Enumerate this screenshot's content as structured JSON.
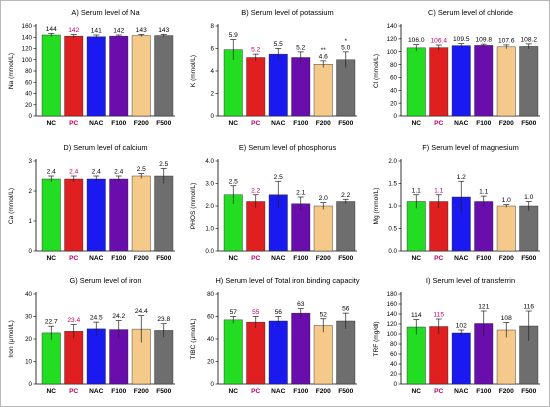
{
  "colors": [
    "#22dd22",
    "#e02020",
    "#1a1af0",
    "#6a0dad",
    "#f5c98a",
    "#6e6e6e"
  ],
  "label_colors": [
    "#000000",
    "#c0006a",
    "#000000",
    "#000000",
    "#000000",
    "#000000"
  ],
  "chart_data": [
    {
      "type": "bar",
      "title": "A) Serum level of Na",
      "ylabel": "Na (mmol/L)",
      "categories": [
        "NC",
        "PC",
        "NAC",
        "F100",
        "F200",
        "F500"
      ],
      "values": [
        144,
        142,
        141,
        142,
        143,
        143
      ],
      "errors": [
        3,
        3,
        3,
        2,
        2,
        2
      ],
      "labels": [
        "144",
        "142",
        "141",
        "142",
        "143",
        "143"
      ],
      "ylim": [
        0,
        160
      ],
      "yticks": [
        0,
        20,
        40,
        60,
        80,
        100,
        120,
        140,
        160
      ],
      "annotations": [
        "",
        "",
        "",
        "",
        "",
        ""
      ]
    },
    {
      "type": "bar",
      "title": "B) Serum level of potassium",
      "ylabel": "K (mmol/L)",
      "categories": [
        "NC",
        "PC",
        "NAC",
        "F100",
        "F200",
        "F500"
      ],
      "values": [
        5.9,
        5.2,
        5.5,
        5.2,
        4.6,
        5.0
      ],
      "errors": [
        0.9,
        0.3,
        0.5,
        0.5,
        0.3,
        0.7
      ],
      "labels": [
        "5.9",
        "5.2",
        "5.5",
        "5.2",
        "4.6",
        "5.0"
      ],
      "ylim": [
        0,
        8
      ],
      "yticks": [
        0,
        2,
        4,
        6,
        8
      ],
      "annotations": [
        "",
        "",
        "",
        "",
        "**",
        "*"
      ]
    },
    {
      "type": "bar",
      "title": "C) Serum level of chloride",
      "ylabel": "Cl (mmol/L)",
      "categories": [
        "NC",
        "PC",
        "NAC",
        "F100",
        "F200",
        "F500"
      ],
      "values": [
        106.0,
        106.4,
        109.5,
        109.8,
        107.6,
        108.2
      ],
      "errors": [
        5,
        4,
        3,
        2,
        3,
        4
      ],
      "labels": [
        "106.0",
        "106.4",
        "109.5",
        "109.8",
        "107.6",
        "108.2"
      ],
      "ylim": [
        0,
        140
      ],
      "yticks": [
        0,
        20,
        40,
        60,
        80,
        100,
        120,
        140
      ],
      "annotations": [
        "",
        "",
        "",
        "",
        "",
        ""
      ]
    },
    {
      "type": "bar",
      "title": "D) Serum level of calcium",
      "ylabel": "Ca (mmol/L)",
      "categories": [
        "NC",
        "PC",
        "NAC",
        "F100",
        "F200",
        "F500"
      ],
      "values": [
        2.4,
        2.4,
        2.4,
        2.4,
        2.5,
        2.5
      ],
      "errors": [
        0.1,
        0.1,
        0.1,
        0.1,
        0.08,
        0.25
      ],
      "labels": [
        "2.4",
        "2.4",
        "2.4",
        "2.4",
        "2.5",
        "2.5"
      ],
      "ylim": [
        0,
        3
      ],
      "yticks": [
        0,
        1,
        2,
        3
      ],
      "annotations": [
        "",
        "",
        "",
        "",
        "",
        ""
      ]
    },
    {
      "type": "bar",
      "title": "E) Serum level of phosphorus",
      "ylabel": "PHOS (mmol/L)",
      "categories": [
        "NC",
        "PC",
        "NAC",
        "F100",
        "F200",
        "F500"
      ],
      "values": [
        2.5,
        2.2,
        2.5,
        2.1,
        2.0,
        2.2
      ],
      "errors": [
        0.4,
        0.3,
        0.6,
        0.3,
        0.15,
        0.1
      ],
      "labels": [
        "2.5",
        "2.2",
        "2.5",
        "2.1",
        "2.0",
        "2.2"
      ],
      "ylim": [
        0,
        4
      ],
      "yticks": [
        0.0,
        1.0,
        2.0,
        3.0,
        4.0
      ],
      "annotations": [
        "",
        "",
        "",
        "",
        "",
        ""
      ]
    },
    {
      "type": "bar",
      "title": "F) Serum level of magnesium",
      "ylabel": "Mg (mmol/L)",
      "categories": [
        "NC",
        "PC",
        "NAC",
        "F100",
        "F200",
        "F500"
      ],
      "values": [
        1.1,
        1.1,
        1.2,
        1.1,
        1.0,
        1.0
      ],
      "errors": [
        0.15,
        0.15,
        0.35,
        0.12,
        0.03,
        0.1
      ],
      "labels": [
        "1.1",
        "1.1",
        "1.2",
        "1.1",
        "1.0",
        "1.0"
      ],
      "ylim": [
        0,
        2
      ],
      "yticks": [
        0.0,
        0.5,
        1.0,
        1.5,
        2.0
      ],
      "annotations": [
        "",
        "",
        "",
        "",
        "",
        ""
      ]
    },
    {
      "type": "bar",
      "title": "G) Serum level of iron",
      "ylabel": "Iron (μmol/L)",
      "categories": [
        "NC",
        "PC",
        "NAC",
        "F100",
        "F200",
        "F500"
      ],
      "values": [
        22.7,
        23.4,
        24.5,
        24.2,
        24.4,
        23.8
      ],
      "errors": [
        3,
        3,
        3,
        4,
        6,
        3
      ],
      "labels": [
        "22.7",
        "23.4",
        "24.5",
        "24.2",
        "24.4",
        "23.8"
      ],
      "ylim": [
        0,
        40
      ],
      "yticks": [
        0,
        10,
        20,
        30,
        40
      ],
      "annotations": [
        "",
        "",
        "",
        "",
        "",
        ""
      ]
    },
    {
      "type": "bar",
      "title": "H) Serum level of Total iron binding capacity",
      "ylabel": "TIBC (μmol/L)",
      "categories": [
        "NC",
        "PC",
        "NAC",
        "F100",
        "F200",
        "F500"
      ],
      "values": [
        57,
        55,
        56,
        63,
        52,
        56
      ],
      "errors": [
        3,
        5,
        4,
        4,
        6,
        7
      ],
      "labels": [
        "57",
        "55",
        "56",
        "63",
        "52",
        "56"
      ],
      "ylim": [
        0,
        80
      ],
      "yticks": [
        0,
        20,
        40,
        60,
        80
      ],
      "annotations": [
        "",
        "",
        "",
        "",
        "",
        ""
      ]
    },
    {
      "type": "bar",
      "title": "I) Serum level of transferrin",
      "ylabel": "TRF (mg/dl)",
      "categories": [
        "NC",
        "PC",
        "NAC",
        "F100",
        "F200",
        "F500"
      ],
      "values": [
        114,
        115,
        102,
        121,
        108,
        116
      ],
      "errors": [
        15,
        15,
        6,
        25,
        15,
        30
      ],
      "labels": [
        "114",
        "115",
        "102",
        "121",
        "108",
        "116"
      ],
      "ylim": [
        0,
        180
      ],
      "yticks": [
        0,
        20,
        40,
        60,
        80,
        100,
        120,
        140,
        160,
        180
      ],
      "annotations": [
        "",
        "",
        "",
        "",
        "",
        ""
      ]
    }
  ]
}
